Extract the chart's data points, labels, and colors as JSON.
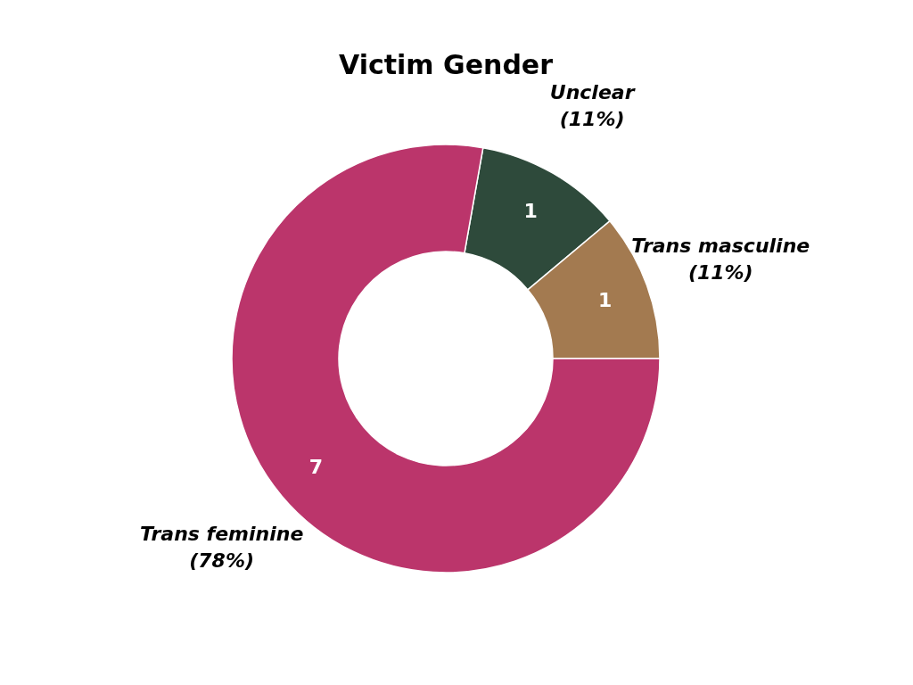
{
  "chart_data": {
    "type": "donut",
    "title": "Victim Gender",
    "categories": [
      "Unclear",
      "Trans masculine",
      "Trans feminine"
    ],
    "values": [
      1,
      1,
      7
    ],
    "colors": [
      "#2e4a3b",
      "#a37a50",
      "#bb356b"
    ],
    "data_labels": true,
    "annotations": [
      "(11%)",
      "(11%)",
      "(78%)"
    ],
    "legend": false
  }
}
